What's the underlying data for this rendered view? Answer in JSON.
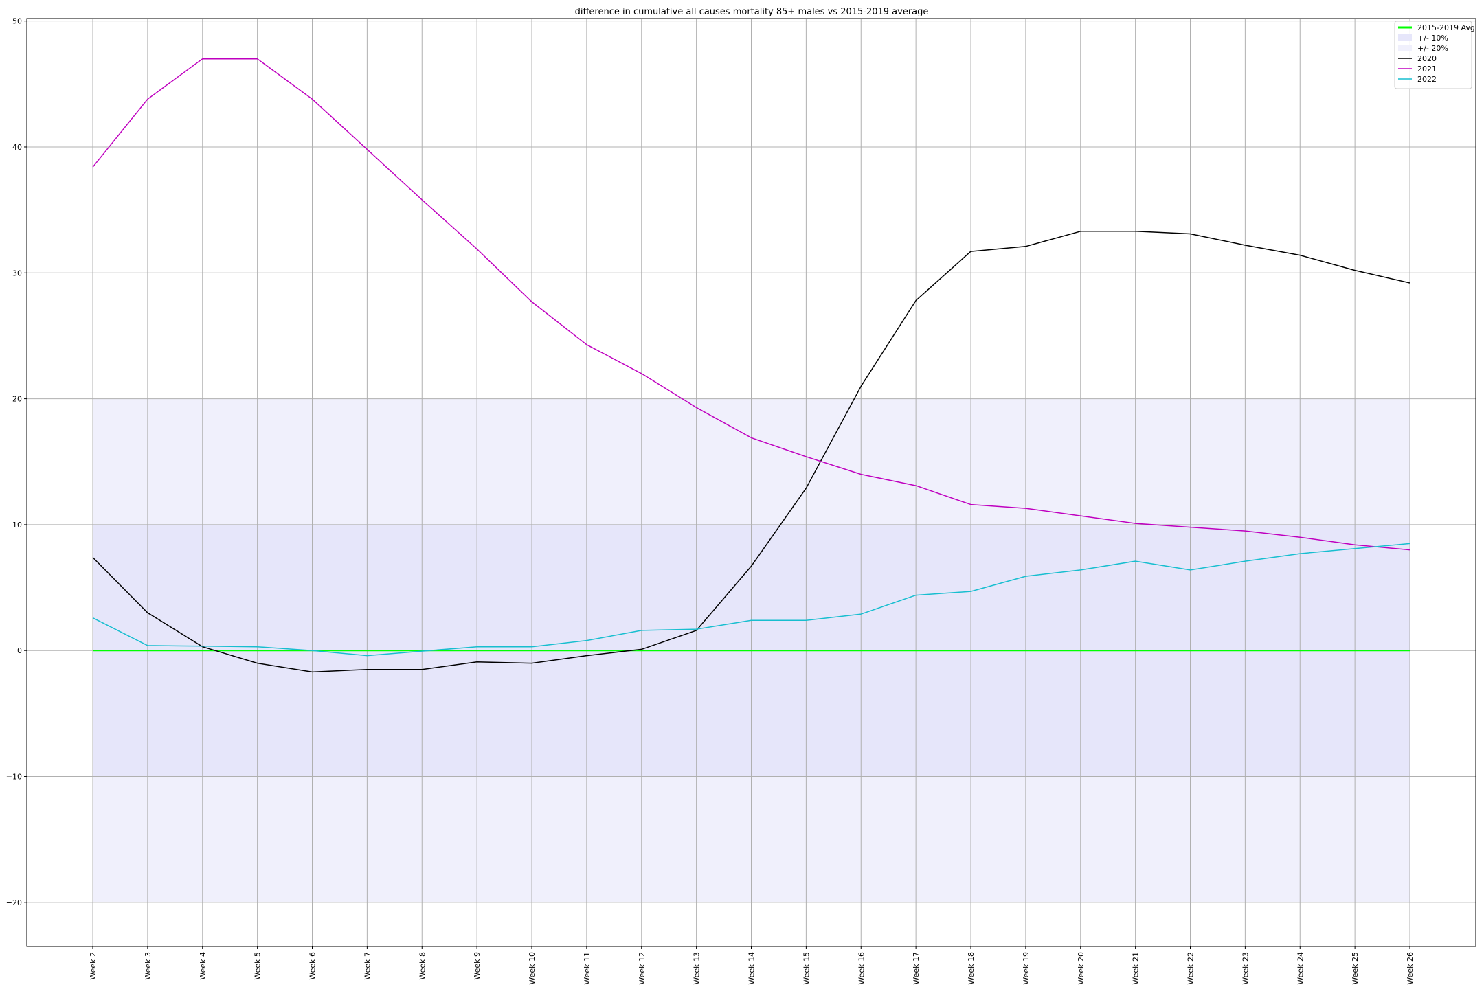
{
  "chart_data": {
    "type": "line",
    "title": "difference in cumulative all causes mortality 85+ males vs 2015-2019 average",
    "xlabel": "",
    "ylabel": "",
    "categories": [
      "Week 2",
      "Week 3",
      "Week 4",
      "Week 5",
      "Week 6",
      "Week 7",
      "Week 8",
      "Week 9",
      "Week 10",
      "Week 11",
      "Week 12",
      "Week 13",
      "Week 14",
      "Week 15",
      "Week 16",
      "Week 17",
      "Week 18",
      "Week 19",
      "Week 20",
      "Week 21",
      "Week 22",
      "Week 23",
      "Week 24",
      "Week 25",
      "Week 26"
    ],
    "ylim": [
      -23.5,
      50.2
    ],
    "yticks": [
      -20,
      -10,
      0,
      10,
      20,
      30,
      40,
      50
    ],
    "ytick_labels": [
      "−20",
      "−10",
      "0",
      "10",
      "20",
      "30",
      "40",
      "50"
    ],
    "grid": true,
    "legend_position": "top-right",
    "bands": [
      {
        "name": "+/- 10%",
        "lower": -10,
        "upper": 10,
        "color": "#e6e6fa"
      },
      {
        "name": "+/- 20%",
        "lower": -20,
        "upper": 20,
        "color": "#f0f0fc"
      }
    ],
    "series": [
      {
        "name": "2015-2019 Avg",
        "color": "#00ff00",
        "width": 2,
        "values": [
          0,
          0,
          0,
          0,
          0,
          0,
          0,
          0,
          0,
          0,
          0,
          0,
          0,
          0,
          0,
          0,
          0,
          0,
          0,
          0,
          0,
          0,
          0,
          0,
          0
        ]
      },
      {
        "name": "2020",
        "color": "#000000",
        "width": 1.5,
        "values": [
          7.4,
          3.0,
          0.3,
          -1.0,
          -1.7,
          -1.5,
          -1.5,
          -0.9,
          -1.0,
          -0.4,
          0.1,
          1.6,
          6.7,
          12.9,
          21.0,
          27.8,
          31.7,
          32.1,
          33.3,
          33.3,
          33.1,
          32.2,
          31.4,
          30.2,
          29.2
        ]
      },
      {
        "name": "2021",
        "color": "#bf00bf",
        "width": 1.5,
        "values": [
          38.4,
          43.8,
          47.0,
          47.0,
          43.8,
          39.8,
          35.8,
          31.9,
          27.7,
          24.3,
          22.0,
          19.3,
          16.9,
          15.4,
          14.0,
          13.1,
          11.6,
          11.3,
          10.7,
          10.1,
          9.8,
          9.5,
          9.0,
          8.4,
          8.0
        ]
      },
      {
        "name": "2022",
        "color": "#17becf",
        "width": 1.5,
        "values": [
          2.6,
          0.4,
          0.35,
          0.3,
          0.0,
          -0.4,
          -0.05,
          0.3,
          0.3,
          0.8,
          1.6,
          1.7,
          2.4,
          2.4,
          2.9,
          4.4,
          4.7,
          5.9,
          6.4,
          7.1,
          6.4,
          7.1,
          7.7,
          8.1,
          8.5
        ]
      }
    ]
  }
}
